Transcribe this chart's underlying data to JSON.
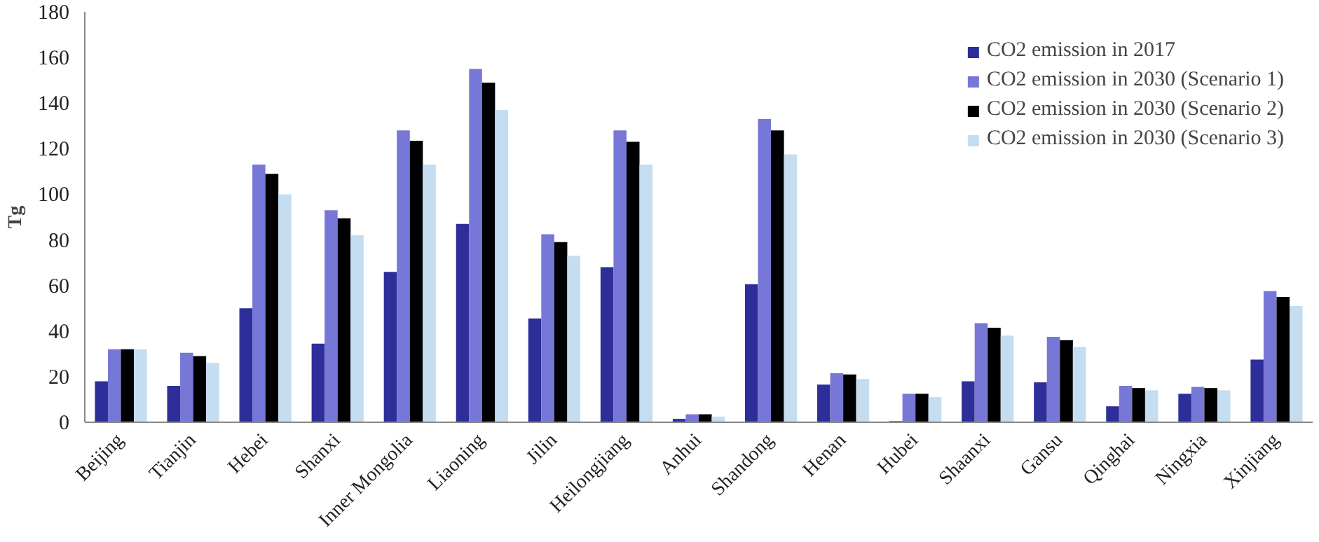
{
  "chart_data": {
    "type": "bar",
    "ylabel": "Tg",
    "categories": [
      "Beijing",
      "Tianjin",
      "Hebei",
      "Shanxi",
      "Inner Mongolia",
      "Liaoning",
      "Jilin",
      "Heilongjiang",
      "Anhui",
      "Shandong",
      "Henan",
      "Hubei",
      "Shaanxi",
      "Gansu",
      "Qinghai",
      "Ningxia",
      "Xinjiang"
    ],
    "series": [
      {
        "name": "CO2 emission in 2017",
        "color": "#2e2e9a",
        "values": [
          18,
          16,
          50,
          34.5,
          66,
          87,
          45.5,
          68,
          1.5,
          60.5,
          16.5,
          0.5,
          18,
          17.5,
          7,
          12.5,
          27.5
        ]
      },
      {
        "name": "CO2 emission in 2030 (Scenario 1)",
        "color": "#7777d8",
        "values": [
          32,
          30.5,
          113,
          93,
          128,
          155,
          82.5,
          128,
          3.5,
          133,
          21.5,
          12.5,
          43.5,
          37.5,
          16,
          15.5,
          57.5
        ]
      },
      {
        "name": "CO2 emission in 2030 (Scenario 2)",
        "color": "#000000",
        "values": [
          32,
          29,
          109,
          89.5,
          123.5,
          149,
          79,
          123,
          3.5,
          128,
          21,
          12.5,
          41.5,
          36,
          15,
          15,
          55
        ]
      },
      {
        "name": "CO2 emission in 2030 (Scenario 3)",
        "color": "#c5ddf0",
        "values": [
          32,
          26,
          100,
          82,
          113,
          137,
          73,
          113,
          2.5,
          117.5,
          19,
          11,
          38,
          33,
          14,
          14,
          51
        ]
      }
    ],
    "ylim": [
      0,
      180
    ],
    "yticks": [
      0,
      20,
      40,
      60,
      80,
      100,
      120,
      140,
      160,
      180
    ],
    "grid": false,
    "legend": "top right"
  }
}
